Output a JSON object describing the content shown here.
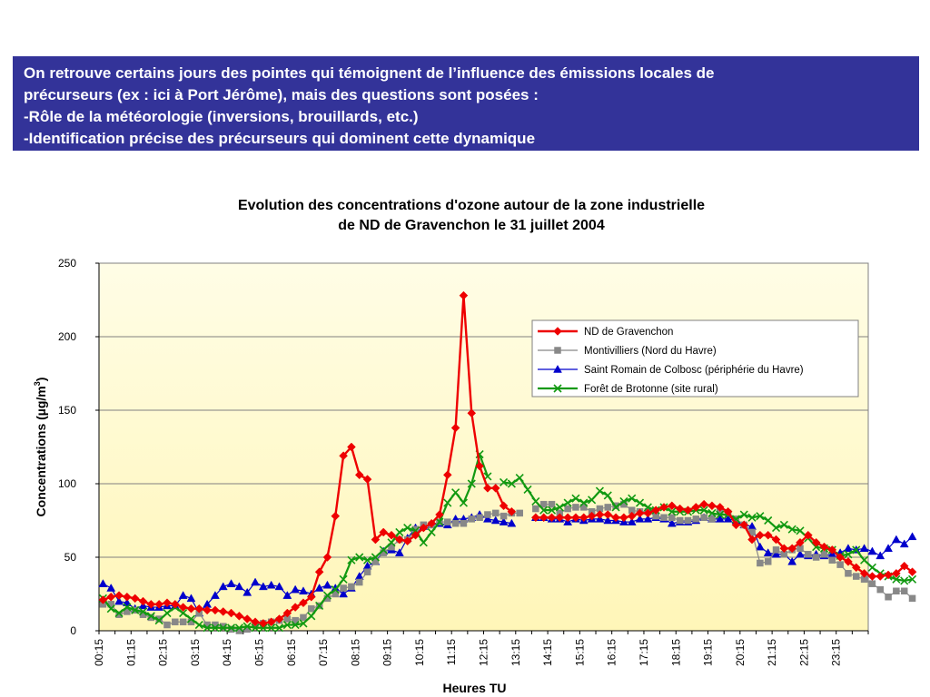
{
  "banner": {
    "lines": [
      "On retrouve certains jours des pointes qui témoignent de l’influence des émissions locales de",
      "précurseurs (ex : ici à Port Jérôme), mais des questions sont posées :",
      "-Rôle de la météorologie (inversions, brouillards, etc.)",
      "-Identification précise des précurseurs qui dominent cette dynamique"
    ]
  },
  "colors": {
    "banner_bg": "#333399",
    "plot_bg_top": "#fffde6",
    "plot_bg_bottom": "#fff6b8"
  },
  "chart_data": {
    "type": "line",
    "title_lines": [
      "Evolution des concentrations d'ozone autour de la zone industrielle",
      "de ND de Gravenchon le 31 juillet 2004"
    ],
    "xlabel": "Heures TU",
    "ylabel": "Concentrations (µg/m3)",
    "ylim": [
      0,
      250
    ],
    "yticks": [
      0,
      50,
      100,
      150,
      200,
      250
    ],
    "xlim": [
      0,
      96
    ],
    "x_tick_labels": [
      "00:15",
      "01:15",
      "02:15",
      "03:15",
      "04:15",
      "05:15",
      "06:15",
      "07:15",
      "08:15",
      "09:15",
      "10:15",
      "11:15",
      "12:15",
      "13:15",
      "14:15",
      "15:15",
      "16:15",
      "17:15",
      "18:15",
      "19:15",
      "20:15",
      "21:15",
      "22:15",
      "23:15"
    ],
    "grid": true,
    "legend_position": "top-right",
    "series": [
      {
        "name": "ND de Gravenchon",
        "color": "#ee0000",
        "marker": "diamond",
        "values": [
          21,
          23,
          24,
          23,
          22,
          20,
          18,
          18,
          19,
          18,
          16,
          15,
          15,
          14,
          14,
          13,
          12,
          10,
          8,
          6,
          5,
          6,
          8,
          12,
          16,
          19,
          23,
          40,
          50,
          78,
          119,
          125,
          106,
          103,
          62,
          67,
          65,
          62,
          61,
          65,
          70,
          73,
          79,
          106,
          138,
          228,
          148,
          112,
          97,
          97,
          85,
          81,
          null,
          null,
          77,
          77,
          77,
          77,
          77,
          77,
          77,
          78,
          79,
          79,
          77,
          77,
          78,
          80,
          80,
          82,
          84,
          85,
          83,
          82,
          84,
          86,
          85,
          84,
          81,
          72,
          72,
          62,
          65,
          65,
          62,
          56,
          56,
          60,
          65,
          60,
          57,
          55,
          50,
          47,
          43,
          39,
          37,
          37,
          38,
          39,
          44,
          40
        ]
      },
      {
        "name": "Montivilliers (Nord du Havre)",
        "color": "#888888",
        "marker": "square",
        "values": [
          18,
          18,
          11,
          13,
          14,
          11,
          9,
          8,
          4,
          6,
          6,
          6,
          12,
          4,
          4,
          3,
          1,
          0,
          1,
          4,
          5,
          6,
          7,
          8,
          7,
          9,
          15,
          17,
          22,
          25,
          29,
          30,
          33,
          40,
          47,
          53,
          57,
          62,
          62,
          69,
          72,
          72,
          74,
          74,
          73,
          73,
          76,
          77,
          79,
          80,
          78,
          80,
          80,
          null,
          83,
          86,
          86,
          80,
          83,
          84,
          84,
          81,
          83,
          84,
          85,
          86,
          82,
          81,
          81,
          78,
          77,
          77,
          75,
          75,
          76,
          77,
          76,
          82,
          80,
          76,
          72,
          67,
          46,
          47,
          55,
          52,
          55,
          56,
          52,
          50,
          52,
          48,
          45,
          39,
          37,
          35,
          32,
          28,
          23,
          27,
          27,
          22
        ]
      },
      {
        "name": "Saint Romain de Colbosc (périphérie du Havre)",
        "color": "#0000cc",
        "marker": "triangle",
        "values": [
          32,
          29,
          20,
          19,
          15,
          17,
          16,
          16,
          17,
          17,
          24,
          22,
          12,
          18,
          24,
          30,
          32,
          30,
          26,
          33,
          30,
          31,
          30,
          24,
          28,
          27,
          25,
          29,
          31,
          29,
          25,
          29,
          37,
          44,
          47,
          54,
          55,
          53,
          63,
          70,
          71,
          72,
          73,
          72,
          76,
          76,
          77,
          79,
          76,
          75,
          74,
          73,
          null,
          null,
          77,
          77,
          76,
          76,
          74,
          76,
          75,
          76,
          76,
          75,
          75,
          74,
          74,
          76,
          76,
          77,
          76,
          73,
          74,
          74,
          75,
          77,
          76,
          76,
          76,
          75,
          72,
          71,
          57,
          53,
          52,
          52,
          47,
          52,
          51,
          52,
          51,
          52,
          53,
          56,
          55,
          56,
          54,
          51,
          56,
          62,
          59,
          64
        ]
      },
      {
        "name": "Forêt de Brotonne (site rural)",
        "color": "#119911",
        "marker": "x",
        "values": [
          22,
          15,
          12,
          16,
          14,
          13,
          10,
          7,
          12,
          16,
          12,
          8,
          4,
          2,
          2,
          2,
          2,
          2,
          3,
          2,
          2,
          2,
          2,
          4,
          4,
          5,
          10,
          17,
          24,
          28,
          35,
          48,
          50,
          48,
          50,
          55,
          60,
          67,
          70,
          68,
          60,
          67,
          74,
          87,
          94,
          87,
          100,
          120,
          105,
          null,
          101,
          100,
          104,
          96,
          88,
          82,
          82,
          84,
          87,
          90,
          87,
          89,
          95,
          92,
          84,
          88,
          90,
          87,
          84,
          82,
          84,
          81,
          81,
          81,
          82,
          82,
          80,
          79,
          79,
          76,
          79,
          77,
          78,
          75,
          70,
          72,
          69,
          68,
          63,
          57,
          56,
          55,
          51,
          52,
          55,
          48,
          43,
          39,
          37,
          35,
          34,
          35
        ]
      }
    ]
  }
}
